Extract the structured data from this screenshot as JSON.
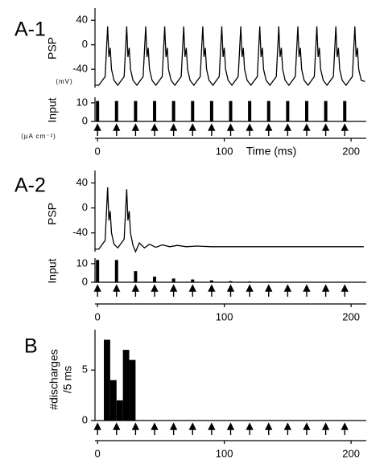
{
  "chart_data": [
    {
      "type": "line",
      "panel_label": "A-1",
      "ylabel": "PSP",
      "yunit": "(mV)",
      "color": "#000000",
      "x": [
        -2,
        1,
        6,
        8,
        9,
        10,
        11,
        13,
        16,
        21,
        23,
        24,
        25,
        26,
        28,
        31,
        36,
        38,
        39,
        40,
        41,
        43,
        46,
        51,
        53,
        54,
        55,
        56,
        58,
        61,
        66,
        68,
        69,
        70,
        71,
        73,
        76,
        81,
        83,
        84,
        85,
        86,
        88,
        91,
        96,
        98,
        99,
        100,
        101,
        103,
        106,
        111,
        113,
        114,
        115,
        116,
        118,
        121,
        126,
        128,
        129,
        130,
        131,
        133,
        136,
        141,
        143,
        144,
        145,
        146,
        148,
        151,
        156,
        158,
        159,
        160,
        161,
        163,
        166,
        171,
        173,
        174,
        175,
        176,
        178,
        181,
        186,
        188,
        189,
        190,
        191,
        193,
        196,
        201,
        203,
        204,
        205,
        206,
        208,
        211
      ],
      "values": [
        -66,
        -66,
        -52,
        30,
        -20,
        -5,
        -40,
        -58,
        -66,
        -52,
        30,
        -20,
        -5,
        -40,
        -58,
        -66,
        -52,
        30,
        -20,
        -5,
        -40,
        -58,
        -66,
        -52,
        30,
        -20,
        -5,
        -40,
        -58,
        -66,
        -52,
        30,
        -20,
        -5,
        -40,
        -58,
        -66,
        -52,
        30,
        -20,
        -5,
        -40,
        -58,
        -66,
        -52,
        30,
        -20,
        -5,
        -40,
        -58,
        -66,
        -52,
        30,
        -20,
        -5,
        -40,
        -58,
        -66,
        -52,
        30,
        -20,
        -5,
        -40,
        -58,
        -66,
        -52,
        30,
        -20,
        -5,
        -40,
        -58,
        -66,
        -52,
        30,
        -20,
        -5,
        -40,
        -58,
        -66,
        -52,
        30,
        -20,
        -5,
        -40,
        -58,
        -66,
        -52,
        30,
        -20,
        -5,
        -40,
        -58,
        -66,
        -52,
        30,
        -20,
        -5,
        -40,
        -58,
        -60
      ],
      "xlim": [
        -2,
        212
      ],
      "ylim": [
        -70,
        60
      ],
      "yticks": [
        40,
        0,
        -40
      ]
    },
    {
      "type": "bar",
      "ylabel": "Input",
      "yunit": "(μA cm⁻²)",
      "xlabel": "Time (ms)",
      "color": "#000000",
      "x": [
        0,
        15,
        30,
        45,
        60,
        75,
        90,
        105,
        120,
        135,
        150,
        165,
        180,
        195
      ],
      "values": [
        11,
        11,
        11,
        11,
        11,
        11,
        11,
        11,
        11,
        11,
        11,
        11,
        11,
        11
      ],
      "xlim": [
        -2,
        212
      ],
      "ylim": [
        0,
        13
      ],
      "yticks": [
        10,
        0
      ],
      "xticks": [
        0,
        100,
        200
      ]
    },
    {
      "type": "line",
      "panel_label": "A-2",
      "ylabel": "PSP",
      "color": "#000000",
      "x": [
        -2,
        1,
        6,
        8,
        9,
        10,
        11,
        13,
        16,
        21,
        23,
        24,
        25,
        26,
        28,
        30,
        33,
        37,
        41,
        46,
        51,
        57,
        63,
        70,
        78,
        90,
        150,
        210
      ],
      "values": [
        -66,
        -66,
        -52,
        33,
        -20,
        -5,
        -40,
        -58,
        -64,
        -50,
        30,
        -20,
        -5,
        -40,
        -60,
        -70,
        -56,
        -64,
        -58,
        -63,
        -59,
        -62,
        -60,
        -62,
        -61,
        -62,
        -62,
        -62
      ],
      "xlim": [
        -2,
        212
      ],
      "ylim": [
        -70,
        60
      ],
      "yticks": [
        40,
        0,
        -40
      ]
    },
    {
      "type": "bar",
      "ylabel": "Input",
      "color": "#000000",
      "x": [
        0,
        15,
        30,
        45,
        60,
        75,
        90,
        105,
        120,
        135,
        150,
        165,
        180,
        195
      ],
      "values": [
        12,
        12,
        6,
        3,
        2,
        1.5,
        1,
        0.6,
        0.4,
        0.3,
        0.2,
        0.2,
        0.1,
        0.1
      ],
      "xlim": [
        -2,
        212
      ],
      "ylim": [
        0,
        13
      ],
      "yticks": [
        10,
        0
      ],
      "xticks": [
        0,
        100,
        200
      ]
    },
    {
      "type": "histogram",
      "panel_label": "B",
      "ylabel_lines": [
        "#discharges",
        "/5 ms"
      ],
      "color": "#000000",
      "bins": [
        5,
        10,
        15,
        20,
        25,
        30
      ],
      "values": [
        8,
        4,
        2,
        7,
        6
      ],
      "xlim": [
        -2,
        212
      ],
      "ylim": [
        0,
        9
      ],
      "yticks": [
        5,
        0
      ],
      "xticks": [
        0,
        100,
        200
      ]
    }
  ]
}
